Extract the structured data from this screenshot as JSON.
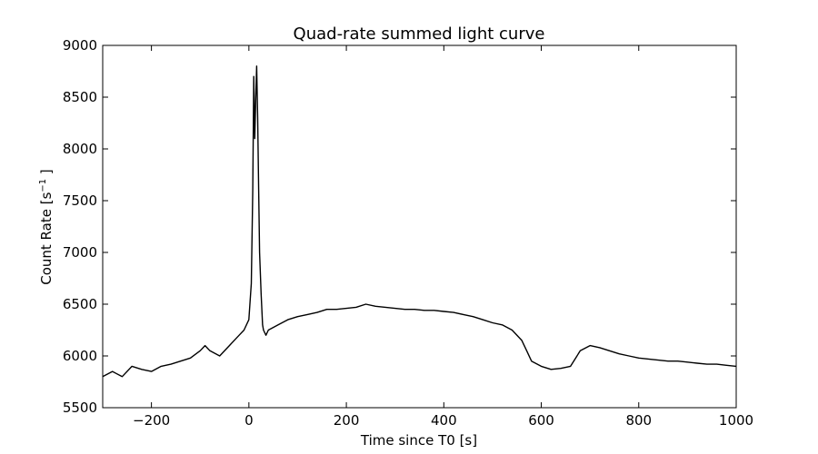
{
  "chart_data": {
    "type": "line",
    "title": "Quad-rate summed light curve",
    "xlabel": "Time since T0 [s]",
    "ylabel_text": "Count Rate [s",
    "ylabel_superscript": "−1",
    "ylabel_close": " ]",
    "xlim": [
      -300,
      1000
    ],
    "ylim": [
      5500,
      9000
    ],
    "xticks": [
      -200,
      0,
      200,
      400,
      600,
      800,
      1000
    ],
    "xtick_labels": [
      "−200",
      "0",
      "200",
      "400",
      "600",
      "800",
      "1000"
    ],
    "yticks": [
      5500,
      6000,
      6500,
      7000,
      7500,
      8000,
      8500,
      9000
    ],
    "ytick_labels": [
      "5500",
      "6000",
      "6500",
      "7000",
      "7500",
      "8000",
      "8500",
      "9000"
    ],
    "grid": false,
    "legend": "none",
    "line_color": "#000000",
    "series": [
      {
        "x": [
          -300,
          -280,
          -260,
          -240,
          -220,
          -200,
          -180,
          -160,
          -140,
          -120,
          -100,
          -90,
          -80,
          -60,
          -40,
          -20,
          -10,
          0,
          5,
          8,
          10,
          12,
          14,
          16,
          18,
          20,
          22,
          25,
          28,
          30,
          35,
          40,
          60,
          80,
          100,
          120,
          140,
          160,
          180,
          200,
          220,
          240,
          260,
          280,
          300,
          320,
          340,
          360,
          380,
          400,
          420,
          440,
          460,
          480,
          500,
          520,
          540,
          560,
          570,
          580,
          600,
          620,
          640,
          660,
          680,
          700,
          720,
          740,
          760,
          780,
          800,
          820,
          840,
          860,
          880,
          900,
          920,
          940,
          960,
          980,
          1000
        ],
        "y": [
          5800,
          5850,
          5800,
          5900,
          5870,
          5850,
          5900,
          5920,
          5950,
          5980,
          6050,
          6100,
          6050,
          6000,
          6100,
          6200,
          6250,
          6350,
          6700,
          7600,
          8700,
          8100,
          8500,
          8800,
          8300,
          7600,
          7000,
          6600,
          6300,
          6250,
          6200,
          6250,
          6300,
          6350,
          6380,
          6400,
          6420,
          6450,
          6450,
          6460,
          6470,
          6500,
          6480,
          6470,
          6460,
          6450,
          6450,
          6440,
          6440,
          6430,
          6420,
          6400,
          6380,
          6350,
          6320,
          6300,
          6250,
          6150,
          6050,
          5950,
          5900,
          5870,
          5880,
          5900,
          6050,
          6100,
          6080,
          6050,
          6020,
          6000,
          5980,
          5970,
          5960,
          5950,
          5950,
          5940,
          5930,
          5920,
          5920,
          5910,
          5900
        ]
      }
    ]
  }
}
